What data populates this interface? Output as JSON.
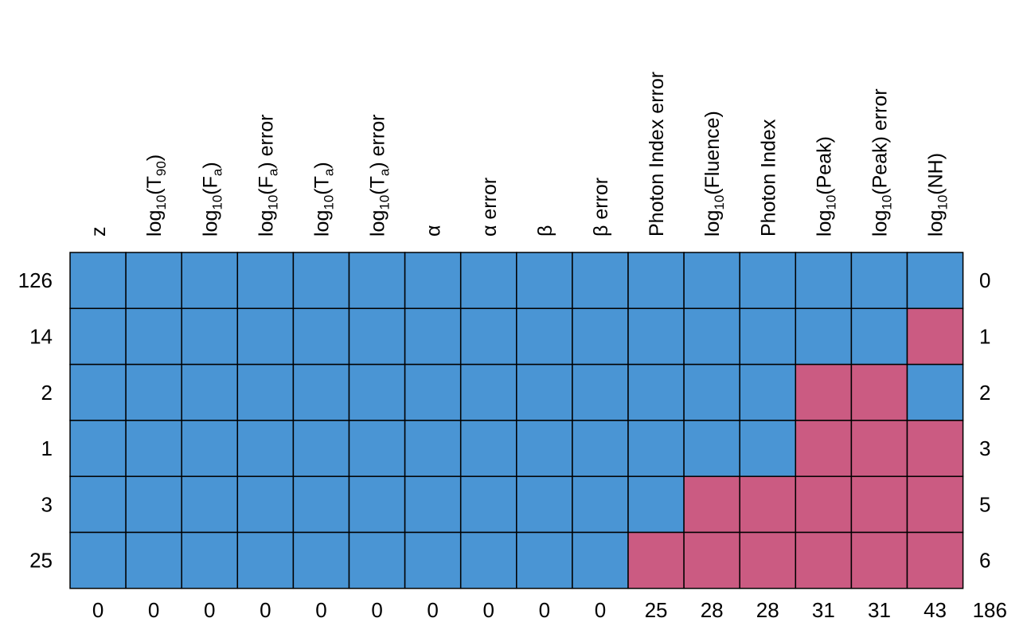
{
  "chart_data": {
    "type": "heatmap",
    "title": "",
    "colors": {
      "observed": "#4A95D4",
      "missing": "#CB5B82",
      "border": "#000000"
    },
    "columns": [
      {
        "label": "z",
        "base": "z",
        "sub": "",
        "tail": ""
      },
      {
        "label": "log10(T90)",
        "base": "log",
        "sub": "10",
        "tail": "(T",
        "sub2": "90",
        "tail2": ")"
      },
      {
        "label": "log10(Fa)",
        "base": "log",
        "sub": "10",
        "tail": "(F",
        "sub2": "a",
        "tail2": ")"
      },
      {
        "label": "log10(Fa) error",
        "base": "log",
        "sub": "10",
        "tail": "(F",
        "sub2": "a",
        "tail2": ") error"
      },
      {
        "label": "log10(Ta)",
        "base": "log",
        "sub": "10",
        "tail": "(T",
        "sub2": "a",
        "tail2": ")"
      },
      {
        "label": "log10(Ta) error",
        "base": "log",
        "sub": "10",
        "tail": "(T",
        "sub2": "a",
        "tail2": ") error"
      },
      {
        "label": "α",
        "base": "α",
        "sub": "",
        "tail": ""
      },
      {
        "label": "α error",
        "base": "α error",
        "sub": "",
        "tail": ""
      },
      {
        "label": "β",
        "base": "β",
        "sub": "",
        "tail": ""
      },
      {
        "label": "β error",
        "base": "β error",
        "sub": "",
        "tail": ""
      },
      {
        "label": "Photon Index error",
        "base": "Photon Index error",
        "sub": "",
        "tail": ""
      },
      {
        "label": "log10(Fluence)",
        "base": "log",
        "sub": "10",
        "tail": "(Fluence)"
      },
      {
        "label": "Photon Index",
        "base": "Photon Index",
        "sub": "",
        "tail": ""
      },
      {
        "label": "log10(Peak)",
        "base": "log",
        "sub": "10",
        "tail": "(Peak)"
      },
      {
        "label": "log10(Peak) error",
        "base": "log",
        "sub": "10",
        "tail": "(Peak) error"
      },
      {
        "label": "log10(NH)",
        "base": "log",
        "sub": "10",
        "tail": "(NH)"
      }
    ],
    "row_counts": [
      "126",
      "14",
      "2",
      "1",
      "3",
      "25"
    ],
    "row_missing": [
      "0",
      "1",
      "2",
      "3",
      "5",
      "6"
    ],
    "column_missing": [
      "0",
      "0",
      "0",
      "0",
      "0",
      "0",
      "0",
      "0",
      "0",
      "0",
      "25",
      "28",
      "28",
      "31",
      "31",
      "43"
    ],
    "total_missing": "186",
    "matrix": [
      [
        1,
        1,
        1,
        1,
        1,
        1,
        1,
        1,
        1,
        1,
        1,
        1,
        1,
        1,
        1,
        1
      ],
      [
        1,
        1,
        1,
        1,
        1,
        1,
        1,
        1,
        1,
        1,
        1,
        1,
        1,
        1,
        1,
        0
      ],
      [
        1,
        1,
        1,
        1,
        1,
        1,
        1,
        1,
        1,
        1,
        1,
        1,
        1,
        0,
        0,
        1
      ],
      [
        1,
        1,
        1,
        1,
        1,
        1,
        1,
        1,
        1,
        1,
        1,
        1,
        1,
        0,
        0,
        0
      ],
      [
        1,
        1,
        1,
        1,
        1,
        1,
        1,
        1,
        1,
        1,
        1,
        0,
        0,
        0,
        0,
        0
      ],
      [
        1,
        1,
        1,
        1,
        1,
        1,
        1,
        1,
        1,
        1,
        0,
        0,
        0,
        0,
        0,
        0
      ]
    ]
  }
}
